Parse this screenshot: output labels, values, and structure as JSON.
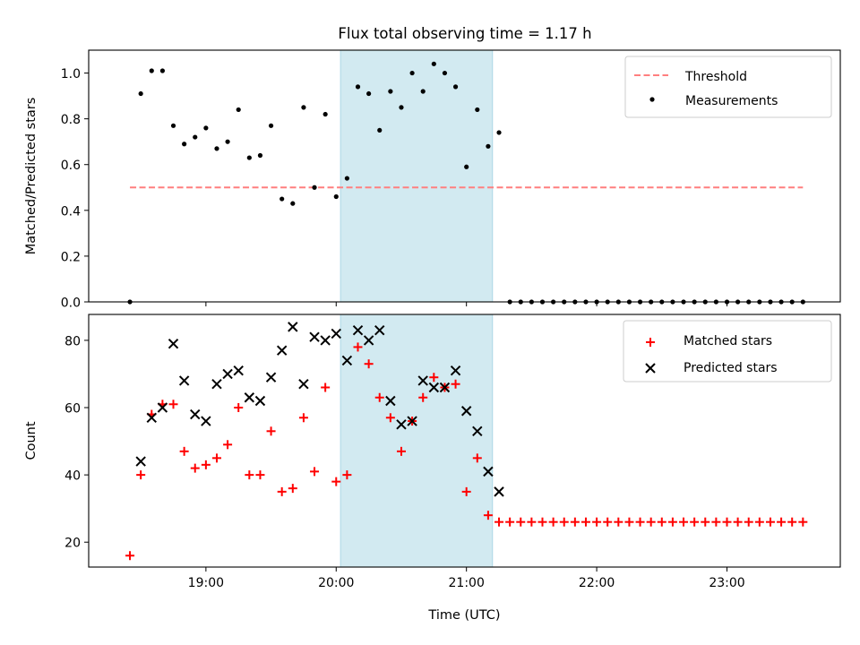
{
  "title": "Flux total observing time = 1.17 h",
  "colors": {
    "threshold": "#ff7f7f",
    "measurements": "#000000",
    "matched": "#ff0000",
    "predicted": "#000000",
    "highlight": "#add8e6"
  },
  "chart_data": [
    {
      "type": "scatter",
      "panel": "top",
      "ylabel": "Matched/Predicted stars",
      "xlabel": "",
      "ylim": [
        0,
        1.1
      ],
      "xlim_hours": [
        18.1,
        23.87
      ],
      "yticks": [
        0.0,
        0.2,
        0.4,
        0.6,
        0.8,
        1.0
      ],
      "ytick_labels": [
        "0.0",
        "0.2",
        "0.4",
        "0.6",
        "0.8",
        "1.0"
      ],
      "legend_position": "top-right",
      "highlight_span": [
        "20:02",
        "21:12"
      ],
      "threshold": {
        "name": "Threshold",
        "value": 0.5,
        "x_range": [
          "18:25",
          "23:35"
        ]
      },
      "series": [
        {
          "name": "Measurements",
          "x": [
            "18:25",
            "18:30",
            "18:35",
            "18:40",
            "18:45",
            "18:50",
            "18:55",
            "19:00",
            "19:05",
            "19:10",
            "19:15",
            "19:20",
            "19:25",
            "19:30",
            "19:35",
            "19:40",
            "19:45",
            "19:50",
            "19:55",
            "20:00",
            "20:05",
            "20:10",
            "20:15",
            "20:20",
            "20:25",
            "20:30",
            "20:35",
            "20:40",
            "20:45",
            "20:50",
            "20:55",
            "21:00",
            "21:05",
            "21:10",
            "21:15",
            "21:20",
            "21:25",
            "21:30",
            "21:35",
            "21:40",
            "21:45",
            "21:50",
            "21:55",
            "22:00",
            "22:05",
            "22:10",
            "22:15",
            "22:20",
            "22:25",
            "22:30",
            "22:35",
            "22:40",
            "22:45",
            "22:50",
            "22:55",
            "23:00",
            "23:05",
            "23:10",
            "23:15",
            "23:20",
            "23:25",
            "23:30",
            "23:35"
          ],
          "y": [
            0.0,
            0.91,
            1.01,
            1.01,
            0.77,
            0.69,
            0.72,
            0.76,
            0.67,
            0.7,
            0.84,
            0.63,
            0.64,
            0.77,
            0.45,
            0.43,
            0.85,
            0.5,
            0.82,
            0.46,
            0.54,
            0.94,
            0.91,
            0.75,
            0.92,
            0.85,
            1.0,
            0.92,
            1.04,
            1.0,
            0.94,
            0.59,
            0.84,
            0.68,
            0.74,
            0.0,
            0.0,
            0.0,
            0.0,
            0.0,
            0.0,
            0.0,
            0.0,
            0.0,
            0.0,
            0.0,
            0.0,
            0.0,
            0.0,
            0.0,
            0.0,
            0.0,
            0.0,
            0.0,
            0.0,
            0.0,
            0.0,
            0.0,
            0.0,
            0.0,
            0.0,
            0.0,
            0.0
          ]
        }
      ]
    },
    {
      "type": "scatter",
      "panel": "bottom",
      "xlabel": "Time (UTC)",
      "ylabel": "Count",
      "ylim": [
        12.6,
        87.7
      ],
      "xlim_hours": [
        18.1,
        23.87
      ],
      "yticks": [
        20,
        40,
        60,
        80
      ],
      "ytick_labels": [
        "20",
        "40",
        "60",
        "80"
      ],
      "xticks": [
        "19:00",
        "20:00",
        "21:00",
        "22:00",
        "23:00"
      ],
      "legend_position": "top-right",
      "highlight_span": [
        "20:02",
        "21:12"
      ],
      "series": [
        {
          "name": "Matched stars",
          "marker": "+",
          "x": [
            "18:25",
            "18:30",
            "18:35",
            "18:40",
            "18:45",
            "18:50",
            "18:55",
            "19:00",
            "19:05",
            "19:10",
            "19:15",
            "19:20",
            "19:25",
            "19:30",
            "19:35",
            "19:40",
            "19:45",
            "19:50",
            "19:55",
            "20:00",
            "20:05",
            "20:10",
            "20:15",
            "20:20",
            "20:25",
            "20:30",
            "20:35",
            "20:40",
            "20:45",
            "20:50",
            "20:55",
            "21:00",
            "21:05",
            "21:10",
            "21:15",
            "21:20",
            "21:25",
            "21:30",
            "21:35",
            "21:40",
            "21:45",
            "21:50",
            "21:55",
            "22:00",
            "22:05",
            "22:10",
            "22:15",
            "22:20",
            "22:25",
            "22:30",
            "22:35",
            "22:40",
            "22:45",
            "22:50",
            "22:55",
            "23:00",
            "23:05",
            "23:10",
            "23:15",
            "23:20",
            "23:25",
            "23:30",
            "23:35"
          ],
          "y": [
            16,
            40,
            58,
            61,
            61,
            47,
            42,
            43,
            45,
            49,
            60,
            40,
            40,
            53,
            35,
            36,
            57,
            41,
            66,
            38,
            40,
            78,
            73,
            63,
            57,
            47,
            56,
            63,
            69,
            66,
            67,
            35,
            45,
            28,
            26,
            26,
            26,
            26,
            26,
            26,
            26,
            26,
            26,
            26,
            26,
            26,
            26,
            26,
            26,
            26,
            26,
            26,
            26,
            26,
            26,
            26,
            26,
            26,
            26,
            26,
            26,
            26,
            26
          ]
        },
        {
          "name": "Predicted stars",
          "marker": "x",
          "x": [
            "18:30",
            "18:35",
            "18:40",
            "18:45",
            "18:50",
            "18:55",
            "19:00",
            "19:05",
            "19:10",
            "19:15",
            "19:20",
            "19:25",
            "19:30",
            "19:35",
            "19:40",
            "19:45",
            "19:50",
            "19:55",
            "20:00",
            "20:05",
            "20:10",
            "20:15",
            "20:20",
            "20:25",
            "20:30",
            "20:35",
            "20:40",
            "20:45",
            "20:50",
            "20:55",
            "21:00",
            "21:05",
            "21:10",
            "21:15"
          ],
          "y": [
            44,
            57,
            60,
            79,
            68,
            58,
            56,
            67,
            70,
            71,
            63,
            62,
            69,
            77,
            84,
            67,
            81,
            80,
            82,
            74,
            83,
            80,
            83,
            62,
            55,
            56,
            68,
            66,
            66,
            71,
            59,
            53,
            41,
            35
          ]
        }
      ]
    }
  ]
}
